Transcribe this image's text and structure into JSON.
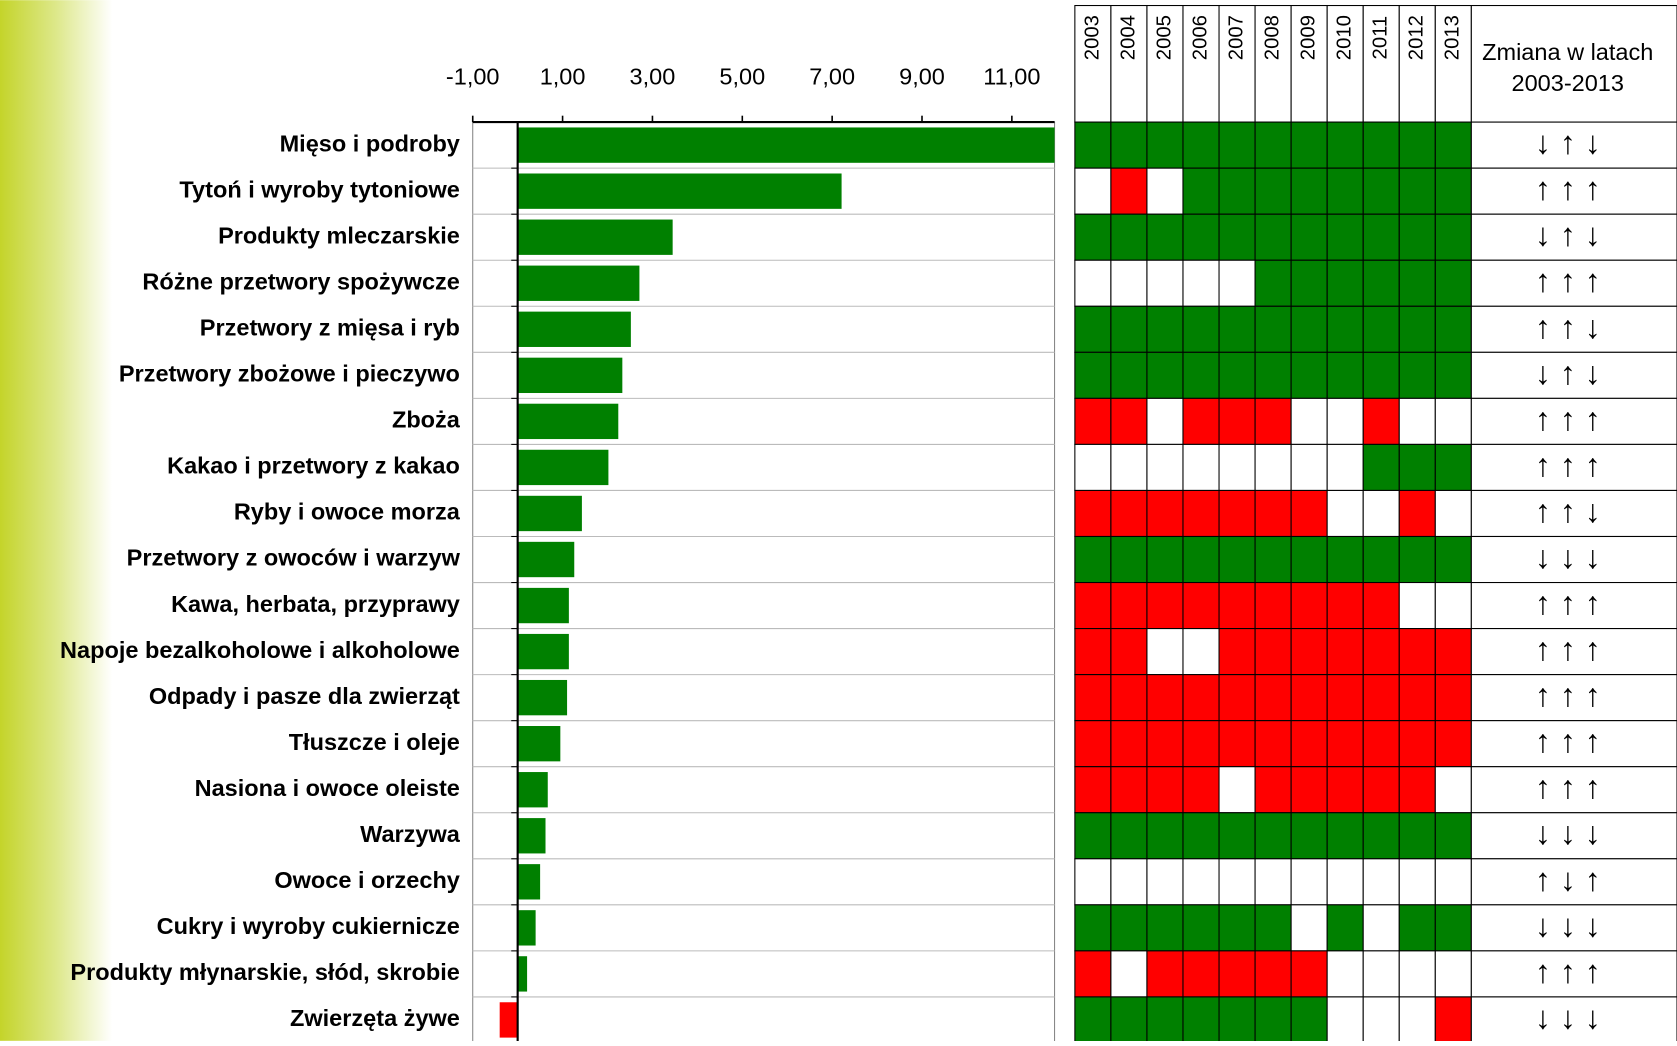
{
  "chart_data": {
    "type": "bar",
    "orientation": "horizontal",
    "categories": [
      "Mięso i podroby",
      "Tytoń i wyroby tytoniowe",
      "Produkty mleczarskie",
      "Różne przetwory spożywcze",
      "Przetwory z mięsa i ryb",
      "Przetwory zbożowe i pieczywo",
      "Zboża",
      "Kakao i przetwory z kakao",
      "Ryby i owoce morza",
      "Przetwory z owoców i warzyw",
      "Kawa, herbata, przyprawy",
      "Napoje bezalkoholowe i alkoholowe",
      "Odpady i pasze dla zwierząt",
      "Tłuszcze i oleje",
      "Nasiona i owoce oleiste",
      "Warzywa",
      "Owoce i orzechy",
      "Cukry i wyroby cukiernicze",
      "Produkty młynarskie, słód, skrobie",
      "Zwierzęta żywe"
    ],
    "values": [
      11.95,
      7.21,
      3.45,
      2.71,
      2.52,
      2.33,
      2.24,
      2.02,
      1.43,
      1.26,
      1.14,
      1.14,
      1.1,
      0.95,
      0.67,
      0.62,
      0.5,
      0.4,
      0.21,
      -0.4
    ],
    "colors": [
      "#008000",
      "#008000",
      "#008000",
      "#008000",
      "#008000",
      "#008000",
      "#008000",
      "#008000",
      "#008000",
      "#008000",
      "#008000",
      "#008000",
      "#008000",
      "#008000",
      "#008000",
      "#008000",
      "#008000",
      "#008000",
      "#008000",
      "#ff0000"
    ],
    "xlim": [
      -1,
      11.95
    ],
    "xticks": [
      {
        "value": -1,
        "label": "-1,00"
      },
      {
        "value": 1,
        "label": "1,00"
      },
      {
        "value": 3,
        "label": "3,00"
      },
      {
        "value": 5,
        "label": "5,00"
      },
      {
        "value": 7,
        "label": "7,00"
      },
      {
        "value": 9,
        "label": "9,00"
      },
      {
        "value": 11,
        "label": "11,00"
      }
    ]
  },
  "heatmap": {
    "columns": [
      "2003",
      "2004",
      "2005",
      "2006",
      "2007",
      "2008",
      "2009",
      "2010",
      "2011",
      "2012",
      "2013"
    ],
    "cells": [
      [
        "#008000",
        "#008000",
        "#008000",
        "#008000",
        "#008000",
        "#008000",
        "#008000",
        "#008000",
        "#008000",
        "#008000",
        "#008000"
      ],
      [
        "#ffffff",
        "#ff0000",
        "#ffffff",
        "#008000",
        "#008000",
        "#008000",
        "#008000",
        "#008000",
        "#008000",
        "#008000",
        "#008000"
      ],
      [
        "#008000",
        "#008000",
        "#008000",
        "#008000",
        "#008000",
        "#008000",
        "#008000",
        "#008000",
        "#008000",
        "#008000",
        "#008000"
      ],
      [
        "#ffffff",
        "#ffffff",
        "#ffffff",
        "#ffffff",
        "#ffffff",
        "#008000",
        "#008000",
        "#008000",
        "#008000",
        "#008000",
        "#008000"
      ],
      [
        "#008000",
        "#008000",
        "#008000",
        "#008000",
        "#008000",
        "#008000",
        "#008000",
        "#008000",
        "#008000",
        "#008000",
        "#008000"
      ],
      [
        "#008000",
        "#008000",
        "#008000",
        "#008000",
        "#008000",
        "#008000",
        "#008000",
        "#008000",
        "#008000",
        "#008000",
        "#008000"
      ],
      [
        "#ff0000",
        "#ff0000",
        "#ffffff",
        "#ff0000",
        "#ff0000",
        "#ff0000",
        "#ffffff",
        "#ffffff",
        "#ff0000",
        "#ffffff",
        "#ffffff"
      ],
      [
        "#ffffff",
        "#ffffff",
        "#ffffff",
        "#ffffff",
        "#ffffff",
        "#ffffff",
        "#ffffff",
        "#ffffff",
        "#008000",
        "#008000",
        "#008000"
      ],
      [
        "#ff0000",
        "#ff0000",
        "#ff0000",
        "#ff0000",
        "#ff0000",
        "#ff0000",
        "#ff0000",
        "#ffffff",
        "#ffffff",
        "#ff0000",
        "#ffffff"
      ],
      [
        "#008000",
        "#008000",
        "#008000",
        "#008000",
        "#008000",
        "#008000",
        "#008000",
        "#008000",
        "#008000",
        "#008000",
        "#008000"
      ],
      [
        "#ff0000",
        "#ff0000",
        "#ff0000",
        "#ff0000",
        "#ff0000",
        "#ff0000",
        "#ff0000",
        "#ff0000",
        "#ff0000",
        "#ffffff",
        "#ffffff"
      ],
      [
        "#ff0000",
        "#ff0000",
        "#ffffff",
        "#ffffff",
        "#ff0000",
        "#ff0000",
        "#ff0000",
        "#ff0000",
        "#ff0000",
        "#ff0000",
        "#ff0000"
      ],
      [
        "#ff0000",
        "#ff0000",
        "#ff0000",
        "#ff0000",
        "#ff0000",
        "#ff0000",
        "#ff0000",
        "#ff0000",
        "#ff0000",
        "#ff0000",
        "#ff0000"
      ],
      [
        "#ff0000",
        "#ff0000",
        "#ff0000",
        "#ff0000",
        "#ff0000",
        "#ff0000",
        "#ff0000",
        "#ff0000",
        "#ff0000",
        "#ff0000",
        "#ff0000"
      ],
      [
        "#ff0000",
        "#ff0000",
        "#ff0000",
        "#ff0000",
        "#ffffff",
        "#ff0000",
        "#ff0000",
        "#ff0000",
        "#ff0000",
        "#ff0000",
        "#ffffff"
      ],
      [
        "#008000",
        "#008000",
        "#008000",
        "#008000",
        "#008000",
        "#008000",
        "#008000",
        "#008000",
        "#008000",
        "#008000",
        "#008000"
      ],
      [
        "#ffffff",
        "#ffffff",
        "#ffffff",
        "#ffffff",
        "#ffffff",
        "#ffffff",
        "#ffffff",
        "#ffffff",
        "#ffffff",
        "#ffffff",
        "#ffffff"
      ],
      [
        "#008000",
        "#008000",
        "#008000",
        "#008000",
        "#008000",
        "#008000",
        "#ffffff",
        "#008000",
        "#ffffff",
        "#008000",
        "#008000"
      ],
      [
        "#ff0000",
        "#ffffff",
        "#ff0000",
        "#ff0000",
        "#ff0000",
        "#ff0000",
        "#ff0000",
        "#ffffff",
        "#ffffff",
        "#ffffff",
        "#ffffff"
      ],
      [
        "#008000",
        "#008000",
        "#008000",
        "#008000",
        "#008000",
        "#008000",
        "#008000",
        "#ffffff",
        "#ffffff",
        "#ffffff",
        "#ff0000"
      ]
    ]
  },
  "change": {
    "header": [
      "Zmiana w latach",
      "2003-2013"
    ],
    "rows": [
      "↓ ↑ ↓",
      "↑ ↑ ↑",
      "↓ ↑ ↓",
      "↑ ↑ ↑",
      "↑ ↑ ↓",
      "↓ ↑ ↓",
      "↑ ↑ ↑",
      "↑ ↑ ↑",
      "↑ ↑ ↓",
      "↓ ↓ ↓",
      "↑ ↑ ↑",
      "↑ ↑ ↑",
      "↑ ↑ ↑",
      "↑ ↑ ↑",
      "↑ ↑ ↑",
      "↓ ↓ ↓",
      "↑ ↓ ↑",
      "↓ ↓ ↓",
      "↑ ↑ ↑",
      "↓ ↓ ↓"
    ]
  }
}
